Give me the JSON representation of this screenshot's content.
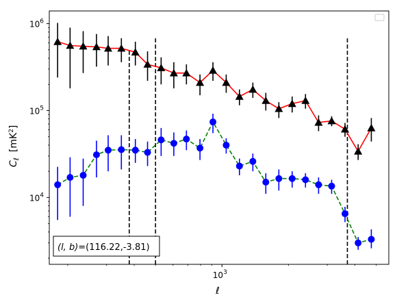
{
  "chart_data": {
    "type": "scatter",
    "x_scale": "log",
    "y_scale": "log",
    "xlim": [
      165,
      5700
    ],
    "ylim": [
      1700,
      1400000
    ],
    "xlabel": "ℓ",
    "ylabel_main": "C",
    "ylabel_sub": "ℓ",
    "ylabel_unit": "[mK",
    "ylabel_unit_sup": "2",
    "ylabel_unit_close": "]",
    "x_ticks": [
      {
        "value": 1000,
        "base": "10",
        "exp": "3"
      }
    ],
    "y_ticks": [
      {
        "value": 10000,
        "base": "10",
        "exp": "4"
      },
      {
        "value": 100000,
        "base": "10",
        "exp": "5"
      },
      {
        "value": 1000000,
        "base": "10",
        "exp": "6"
      }
    ],
    "annotation": "(l,b)=(116.22,-3.81)",
    "annotation_math": "(l, b)",
    "annotation_rest": "=(116.22,-3.81)",
    "vlines": [
      {
        "x": 380,
        "ymax": 500000
      },
      {
        "x": 500,
        "ymax": 700000
      },
      {
        "x": 3700,
        "ymax": 700000
      }
    ],
    "series": [
      {
        "marker": "triangle",
        "marker_color": "#000000",
        "line_color": "#ff0000",
        "line_style": "solid",
        "errorbar_color": "#000000",
        "points": [
          {
            "x": 180,
            "y": 620000,
            "lo": 240000,
            "hi": 1020000
          },
          {
            "x": 205,
            "y": 560000,
            "lo": 180000,
            "hi": 900000
          },
          {
            "x": 235,
            "y": 550000,
            "lo": 270000,
            "hi": 820000
          },
          {
            "x": 270,
            "y": 540000,
            "lo": 320000,
            "hi": 760000
          },
          {
            "x": 305,
            "y": 520000,
            "lo": 330000,
            "hi": 720000
          },
          {
            "x": 350,
            "y": 520000,
            "lo": 360000,
            "hi": 680000
          },
          {
            "x": 405,
            "y": 470000,
            "lo": 330000,
            "hi": 620000
          },
          {
            "x": 460,
            "y": 340000,
            "lo": 220000,
            "hi": 480000
          },
          {
            "x": 530,
            "y": 310000,
            "lo": 200000,
            "hi": 410000
          },
          {
            "x": 605,
            "y": 270000,
            "lo": 180000,
            "hi": 360000
          },
          {
            "x": 690,
            "y": 270000,
            "lo": 200000,
            "hi": 340000
          },
          {
            "x": 795,
            "y": 210000,
            "lo": 150000,
            "hi": 260000
          },
          {
            "x": 910,
            "y": 290000,
            "lo": 220000,
            "hi": 360000
          },
          {
            "x": 1045,
            "y": 210000,
            "lo": 160000,
            "hi": 260000
          },
          {
            "x": 1200,
            "y": 145000,
            "lo": 115000,
            "hi": 175000
          },
          {
            "x": 1380,
            "y": 175000,
            "lo": 140000,
            "hi": 210000
          },
          {
            "x": 1580,
            "y": 130000,
            "lo": 100000,
            "hi": 160000
          },
          {
            "x": 1810,
            "y": 105000,
            "lo": 82000,
            "hi": 125000
          },
          {
            "x": 2080,
            "y": 120000,
            "lo": 95000,
            "hi": 145000
          },
          {
            "x": 2390,
            "y": 130000,
            "lo": 105000,
            "hi": 155000
          },
          {
            "x": 2740,
            "y": 73000,
            "lo": 58000,
            "hi": 88000
          },
          {
            "x": 3140,
            "y": 76000,
            "lo": 66000,
            "hi": 86000
          },
          {
            "x": 3610,
            "y": 61000,
            "lo": 50000,
            "hi": 72000
          },
          {
            "x": 4140,
            "y": 34000,
            "lo": 27000,
            "hi": 41000
          },
          {
            "x": 4750,
            "y": 63000,
            "lo": 44000,
            "hi": 82000
          }
        ]
      },
      {
        "marker": "circle",
        "marker_color": "#0000ff",
        "line_color": "#008000",
        "line_style": "dashed",
        "errorbar_color": "#0000ff",
        "points": [
          {
            "x": 180,
            "y": 14000,
            "lo": 5500,
            "hi": 22500
          },
          {
            "x": 205,
            "y": 17000,
            "lo": 6000,
            "hi": 29000
          },
          {
            "x": 235,
            "y": 18000,
            "lo": 8000,
            "hi": 28000
          },
          {
            "x": 270,
            "y": 31000,
            "lo": 17000,
            "hi": 45000
          },
          {
            "x": 305,
            "y": 35000,
            "lo": 20000,
            "hi": 52000
          },
          {
            "x": 350,
            "y": 35500,
            "lo": 21000,
            "hi": 52000
          },
          {
            "x": 405,
            "y": 35000,
            "lo": 25000,
            "hi": 47000
          },
          {
            "x": 460,
            "y": 33000,
            "lo": 23000,
            "hi": 44000
          },
          {
            "x": 530,
            "y": 46000,
            "lo": 30000,
            "hi": 63000
          },
          {
            "x": 605,
            "y": 42000,
            "lo": 30000,
            "hi": 56000
          },
          {
            "x": 690,
            "y": 47000,
            "lo": 35000,
            "hi": 59000
          },
          {
            "x": 795,
            "y": 37000,
            "lo": 27000,
            "hi": 47000
          },
          {
            "x": 910,
            "y": 74000,
            "lo": 55000,
            "hi": 92000
          },
          {
            "x": 1045,
            "y": 40000,
            "lo": 32000,
            "hi": 48000
          },
          {
            "x": 1200,
            "y": 23000,
            "lo": 18000,
            "hi": 28000
          },
          {
            "x": 1380,
            "y": 26000,
            "lo": 20000,
            "hi": 32000
          },
          {
            "x": 1580,
            "y": 15000,
            "lo": 11000,
            "hi": 19000
          },
          {
            "x": 1810,
            "y": 16500,
            "lo": 12000,
            "hi": 21000
          },
          {
            "x": 2080,
            "y": 16500,
            "lo": 13000,
            "hi": 20000
          },
          {
            "x": 2390,
            "y": 16000,
            "lo": 13000,
            "hi": 19000
          },
          {
            "x": 2740,
            "y": 14000,
            "lo": 11000,
            "hi": 17000
          },
          {
            "x": 3140,
            "y": 13500,
            "lo": 11000,
            "hi": 16000
          },
          {
            "x": 3610,
            "y": 6500,
            "lo": 5200,
            "hi": 7800
          },
          {
            "x": 4140,
            "y": 3000,
            "lo": 2500,
            "hi": 3500
          },
          {
            "x": 4750,
            "y": 3300,
            "lo": 2600,
            "hi": 4300
          }
        ]
      }
    ]
  }
}
